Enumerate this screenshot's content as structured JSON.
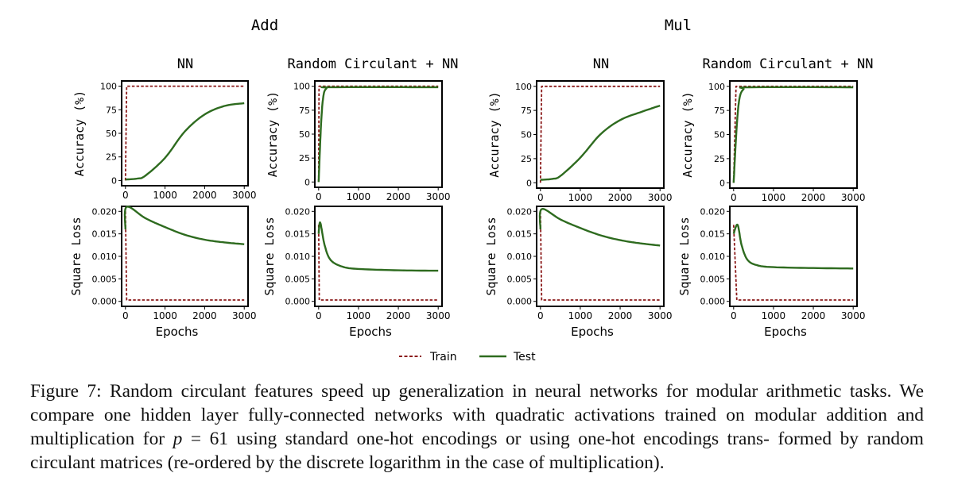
{
  "figure": {
    "legend": {
      "train": "Train",
      "test": "Test"
    },
    "colors": {
      "train": "#8b1a1a",
      "test": "#2e6b1f",
      "axis": "#000000"
    },
    "groups": [
      {
        "title": "Add",
        "panels": [
          {
            "title": "NN",
            "shape": "sigmoid",
            "loss_shape": "slow"
          },
          {
            "title": "Random Circulant + NN",
            "shape": "fast",
            "loss_shape": "fast"
          }
        ]
      },
      {
        "title": "Mul",
        "panels": [
          {
            "title": "NN",
            "shape": "sigmoid2",
            "loss_shape": "slow2"
          },
          {
            "title": "Random Circulant + NN",
            "shape": "fast2",
            "loss_shape": "fast2"
          }
        ]
      }
    ]
  },
  "chart_data": [
    {
      "type": "line",
      "group": "Add",
      "title": "NN",
      "xlabel": "",
      "ylabel": "Accuracy (%)",
      "xlim": [
        0,
        3000
      ],
      "ylim": [
        0,
        100
      ],
      "xticks": [
        "0",
        "1000",
        "2000",
        "3000"
      ],
      "yticks": [
        "0",
        "25",
        "50",
        "75",
        "100"
      ],
      "series": [
        {
          "name": "Train",
          "x": [
            0,
            30,
            3000
          ],
          "values": [
            0,
            100,
            100
          ]
        },
        {
          "name": "Test",
          "x": [
            0,
            300,
            500,
            1000,
            1500,
            2000,
            2500,
            3000
          ],
          "values": [
            1,
            2,
            5,
            24,
            52,
            70,
            79,
            82
          ]
        }
      ]
    },
    {
      "type": "line",
      "group": "Add",
      "title": "Random Circulant + NN",
      "xlabel": "",
      "ylabel": "Accuracy (%)",
      "xlim": [
        0,
        3000
      ],
      "ylim": [
        0,
        100
      ],
      "xticks": [
        "0",
        "1000",
        "2000",
        "3000"
      ],
      "yticks": [
        "0",
        "25",
        "50",
        "75",
        "100"
      ],
      "series": [
        {
          "name": "Train",
          "x": [
            0,
            10,
            3000
          ],
          "values": [
            0,
            100,
            100
          ]
        },
        {
          "name": "Test",
          "x": [
            0,
            60,
            120,
            200,
            300,
            3000
          ],
          "values": [
            0,
            60,
            90,
            98,
            99,
            99
          ]
        }
      ]
    },
    {
      "type": "line",
      "group": "Add",
      "title": "NN",
      "xlabel": "Epochs",
      "ylabel": "Square Loss",
      "xlim": [
        0,
        3000
      ],
      "ylim": [
        0,
        0.02
      ],
      "xticks": [
        "0",
        "1000",
        "2000",
        "3000"
      ],
      "yticks": [
        "0.000",
        "0.005",
        "0.010",
        "0.015",
        "0.020"
      ],
      "series": [
        {
          "name": "Train",
          "x": [
            0,
            30,
            3000
          ],
          "values": [
            0.02,
            0.0003,
            0.0003
          ]
        },
        {
          "name": "Test",
          "x": [
            0,
            30,
            500,
            1000,
            1500,
            2000,
            2500,
            3000
          ],
          "values": [
            0.016,
            0.021,
            0.0185,
            0.0165,
            0.0148,
            0.0137,
            0.0131,
            0.0127
          ]
        }
      ]
    },
    {
      "type": "line",
      "group": "Add",
      "title": "Random Circulant + NN",
      "xlabel": "Epochs",
      "ylabel": "Square Loss",
      "xlim": [
        0,
        3000
      ],
      "ylim": [
        0,
        0.02
      ],
      "xticks": [
        "0",
        "1000",
        "2000",
        "3000"
      ],
      "yticks": [
        "0.000",
        "0.005",
        "0.010",
        "0.015",
        "0.020"
      ],
      "series": [
        {
          "name": "Train",
          "x": [
            0,
            15,
            3000
          ],
          "values": [
            0.017,
            0.0003,
            0.0003
          ]
        },
        {
          "name": "Test",
          "x": [
            0,
            40,
            150,
            300,
            600,
            1000,
            2000,
            3000
          ],
          "values": [
            0.015,
            0.0175,
            0.0125,
            0.0092,
            0.0077,
            0.0072,
            0.0069,
            0.0068
          ]
        }
      ]
    },
    {
      "type": "line",
      "group": "Mul",
      "title": "NN",
      "xlabel": "",
      "ylabel": "Accuracy (%)",
      "xlim": [
        0,
        3000
      ],
      "ylim": [
        0,
        100
      ],
      "xticks": [
        "0",
        "1000",
        "2000",
        "3000"
      ],
      "yticks": [
        "0",
        "25",
        "50",
        "75",
        "100"
      ],
      "series": [
        {
          "name": "Train",
          "x": [
            0,
            30,
            3000
          ],
          "values": [
            0,
            100,
            100
          ]
        },
        {
          "name": "Test",
          "x": [
            0,
            300,
            500,
            1000,
            1500,
            2000,
            2500,
            3000
          ],
          "values": [
            3,
            4,
            7,
            26,
            50,
            65,
            73,
            80
          ]
        }
      ]
    },
    {
      "type": "line",
      "group": "Mul",
      "title": "Random Circulant + NN",
      "xlabel": "",
      "ylabel": "Accuracy (%)",
      "xlim": [
        0,
        3000
      ],
      "ylim": [
        0,
        100
      ],
      "xticks": [
        "0",
        "1000",
        "2000",
        "3000"
      ],
      "yticks": [
        "0",
        "25",
        "50",
        "75",
        "100"
      ],
      "series": [
        {
          "name": "Train",
          "x": [
            0,
            60,
            3000
          ],
          "values": [
            0,
            100,
            100
          ]
        },
        {
          "name": "Test",
          "x": [
            0,
            80,
            150,
            250,
            400,
            3000
          ],
          "values": [
            0,
            60,
            88,
            97,
            99,
            99
          ]
        }
      ]
    },
    {
      "type": "line",
      "group": "Mul",
      "title": "NN",
      "xlabel": "Epochs",
      "ylabel": "Square Loss",
      "xlim": [
        0,
        3000
      ],
      "ylim": [
        0,
        0.02
      ],
      "xticks": [
        "0",
        "1000",
        "2000",
        "3000"
      ],
      "yticks": [
        "0.000",
        "0.005",
        "0.010",
        "0.015",
        "0.020"
      ],
      "series": [
        {
          "name": "Train",
          "x": [
            0,
            30,
            3000
          ],
          "values": [
            0.02,
            0.0003,
            0.0003
          ]
        },
        {
          "name": "Test",
          "x": [
            0,
            30,
            500,
            1000,
            1500,
            2000,
            2500,
            3000
          ],
          "values": [
            0.016,
            0.0205,
            0.0182,
            0.0163,
            0.0147,
            0.0136,
            0.0129,
            0.0124
          ]
        }
      ]
    },
    {
      "type": "line",
      "group": "Mul",
      "title": "Random Circulant + NN",
      "xlabel": "Epochs",
      "ylabel": "Square Loss",
      "xlim": [
        0,
        3000
      ],
      "ylim": [
        0,
        0.02
      ],
      "xticks": [
        "0",
        "1000",
        "2000",
        "3000"
      ],
      "yticks": [
        "0.000",
        "0.005",
        "0.010",
        "0.015",
        "0.020"
      ],
      "series": [
        {
          "name": "Train",
          "x": [
            0,
            80,
            3000
          ],
          "values": [
            0.017,
            0.0003,
            0.0003
          ]
        },
        {
          "name": "Test",
          "x": [
            0,
            100,
            200,
            350,
            600,
            1000,
            2000,
            3000
          ],
          "values": [
            0.015,
            0.017,
            0.0125,
            0.0092,
            0.008,
            0.0076,
            0.0074,
            0.0073
          ]
        }
      ]
    }
  ],
  "caption": {
    "line1": "Figure 7: Random circulant features speed up generalization in neural networks for modular arithmetic",
    "line2": "tasks. We compare one hidden layer fully-connected networks with quadratic activations trained on modular",
    "line3a": "addition and multiplication for ",
    "p_var": "p",
    "line3b": " = 61 using standard one-hot encodings or using one-hot encodings trans-",
    "line4": "formed by random circulant matrices (re-ordered by the discrete logarithm in the case of multiplication)."
  }
}
